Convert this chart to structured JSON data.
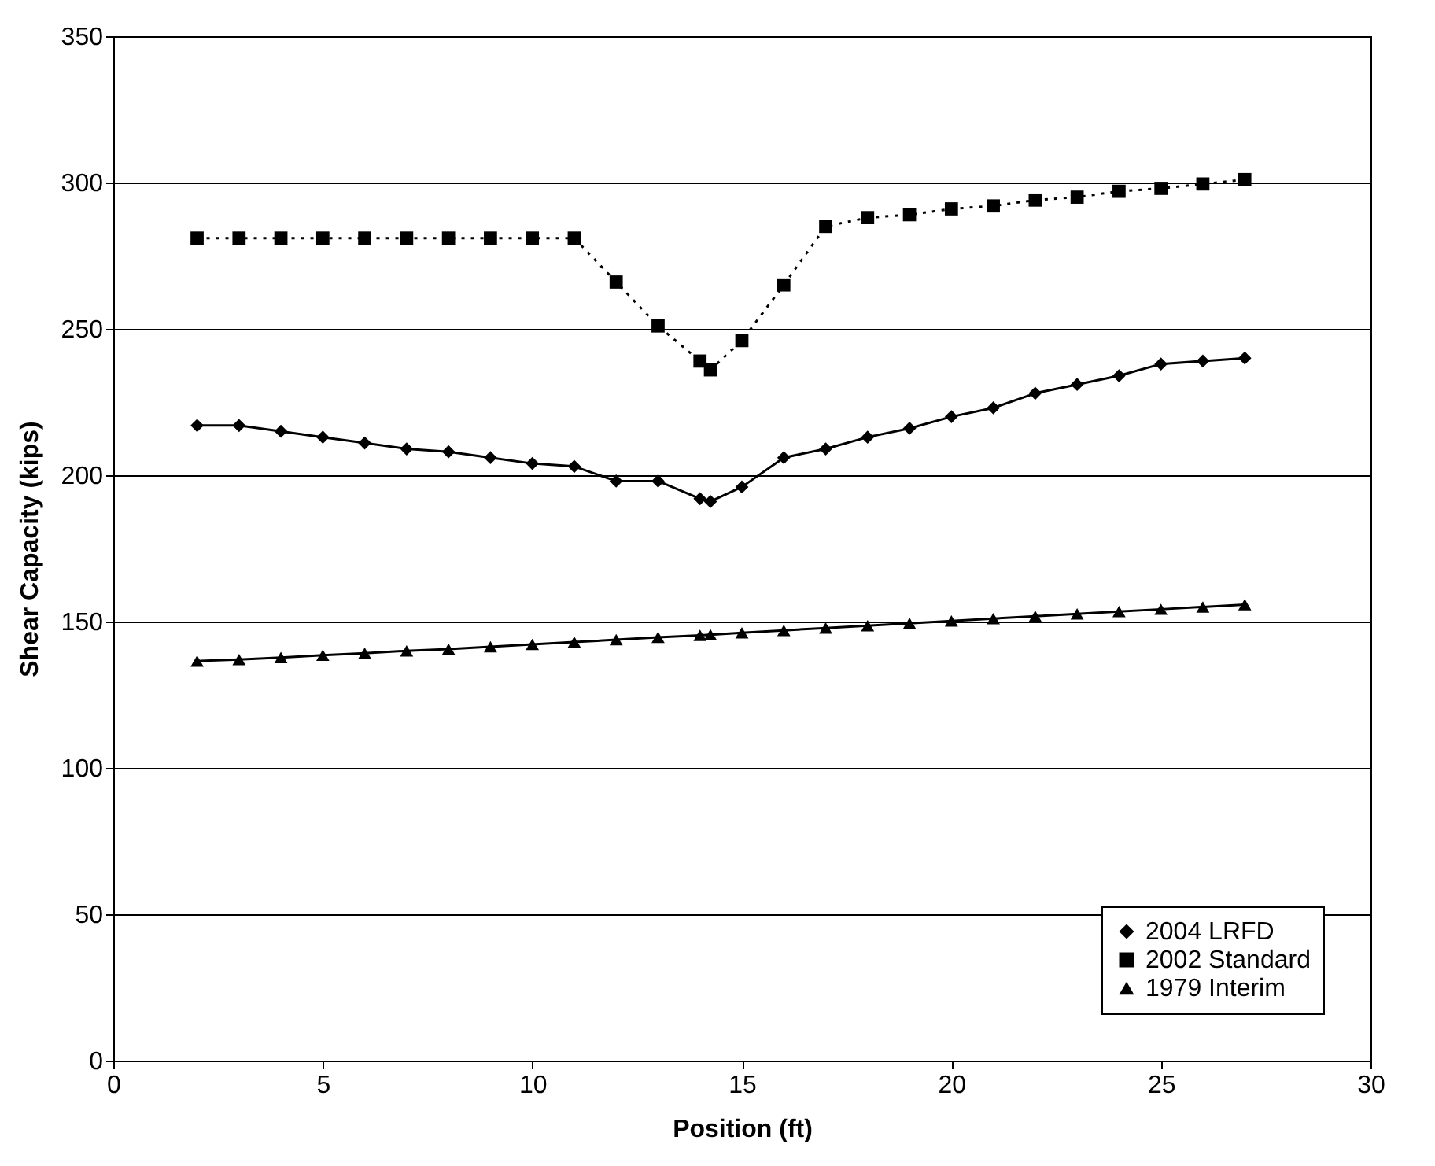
{
  "chart_data": {
    "type": "line",
    "xlabel": "Position (ft)",
    "ylabel": "Shear Capacity (kips)",
    "xlim": [
      0,
      30
    ],
    "xticks": [
      0,
      5,
      10,
      15,
      20,
      25,
      30
    ],
    "ylim": [
      0,
      350
    ],
    "yticks": [
      0,
      50,
      100,
      150,
      200,
      250,
      300,
      350
    ],
    "grid": "y",
    "legend": "bottom right",
    "x": [
      2,
      3,
      4,
      5,
      6,
      7,
      8,
      9,
      10,
      11,
      12,
      13,
      14,
      14.25,
      15,
      16,
      17,
      18,
      19,
      20,
      21,
      22,
      23,
      24,
      25,
      26,
      27
    ],
    "series": [
      {
        "name": "2004 LRFD",
        "color": "#000000",
        "marker": "diamond",
        "line_style": "solid",
        "values": [
          217,
          217,
          215,
          213,
          211,
          209,
          208,
          206,
          204,
          203,
          198,
          198,
          192,
          191,
          196,
          206,
          209,
          213,
          216,
          220,
          223,
          228,
          231,
          234,
          238,
          239,
          240
        ]
      },
      {
        "name": "2002 Standard",
        "color": "#000000",
        "marker": "square",
        "line_style": "dotted",
        "values": [
          281,
          281,
          281,
          281,
          281,
          281,
          281,
          281,
          281,
          281,
          266,
          251,
          239,
          236,
          246,
          265,
          285,
          288,
          289,
          291,
          292,
          294,
          295,
          297,
          298,
          299.5,
          301
        ]
      },
      {
        "name": "1979 Interim",
        "color": "#000000",
        "marker": "triangle",
        "line_style": "solid",
        "values": [
          136.5,
          137,
          137.7,
          138.5,
          139.2,
          140,
          140.6,
          141.4,
          142.2,
          143,
          143.8,
          144.6,
          145.3,
          145.5,
          146.2,
          147,
          147.8,
          148.6,
          149.4,
          150.2,
          151,
          151.8,
          152.6,
          153.4,
          154.2,
          155,
          155.8
        ]
      }
    ]
  }
}
